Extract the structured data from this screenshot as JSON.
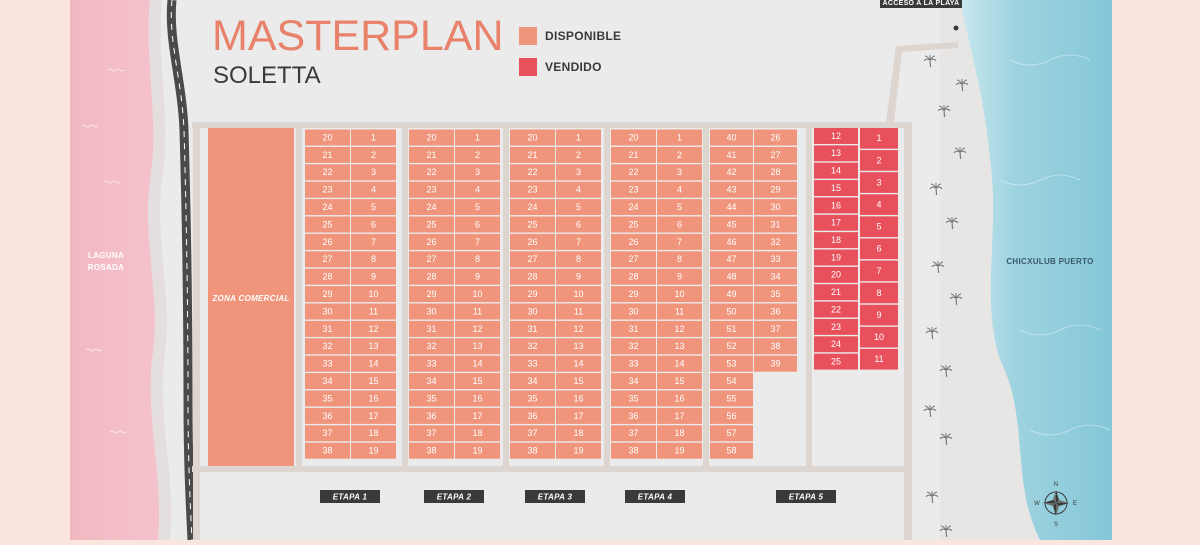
{
  "header": {
    "title": "MASTERPLAN",
    "subtitle": "SOLETTA"
  },
  "legend": {
    "available_label": "DISPONIBLE",
    "sold_label": "VENDIDO",
    "available_color": "#f0957c",
    "sold_color": "#e8505b"
  },
  "places": {
    "laguna_line1": "LAGUNA",
    "laguna_line2": "ROSADA",
    "sea": "CHICXULUB PUERTO",
    "beach_access": "ACCESO A LA PLAYA",
    "zona_comercial": "ZONA COMERCIAL"
  },
  "compass": {
    "n": "N",
    "s": "S",
    "e": "E",
    "w": "W"
  },
  "icons": {
    "palm": "palm-tree-icon",
    "compass": "compass-rose-icon"
  },
  "etapas": [
    {
      "label": "ETAPA 1",
      "left_column": [
        "20",
        "21",
        "22",
        "23",
        "24",
        "25",
        "26",
        "27",
        "28",
        "29",
        "30",
        "31",
        "32",
        "33",
        "34",
        "35",
        "36",
        "37",
        "38"
      ],
      "right_column": [
        "1",
        "2",
        "3",
        "4",
        "5",
        "6",
        "7",
        "8",
        "9",
        "10",
        "11",
        "12",
        "13",
        "14",
        "15",
        "16",
        "17",
        "18",
        "19"
      ],
      "status": "disponible"
    },
    {
      "label": "ETAPA 2",
      "left_column": [
        "20",
        "21",
        "22",
        "23",
        "24",
        "25",
        "26",
        "27",
        "28",
        "29",
        "30",
        "31",
        "32",
        "33",
        "34",
        "35",
        "36",
        "37",
        "38"
      ],
      "right_column": [
        "1",
        "2",
        "3",
        "4",
        "5",
        "6",
        "7",
        "8",
        "9",
        "10",
        "11",
        "12",
        "13",
        "14",
        "15",
        "16",
        "17",
        "18",
        "19"
      ],
      "status": "disponible"
    },
    {
      "label": "ETAPA 3",
      "left_column": [
        "20",
        "21",
        "22",
        "23",
        "24",
        "25",
        "26",
        "27",
        "28",
        "29",
        "30",
        "31",
        "32",
        "33",
        "34",
        "35",
        "36",
        "37",
        "38"
      ],
      "right_column": [
        "1",
        "2",
        "3",
        "4",
        "5",
        "6",
        "7",
        "8",
        "9",
        "10",
        "11",
        "12",
        "13",
        "14",
        "15",
        "16",
        "17",
        "18",
        "19"
      ],
      "status": "disponible"
    },
    {
      "label": "ETAPA 4",
      "left_column": [
        "20",
        "21",
        "22",
        "23",
        "24",
        "25",
        "26",
        "27",
        "28",
        "29",
        "30",
        "31",
        "32",
        "33",
        "34",
        "35",
        "36",
        "37",
        "38"
      ],
      "right_column": [
        "1",
        "2",
        "3",
        "4",
        "5",
        "6",
        "7",
        "8",
        "9",
        "10",
        "11",
        "12",
        "13",
        "14",
        "15",
        "16",
        "17",
        "18",
        "19"
      ],
      "status": "disponible"
    },
    {
      "label": "ETAPA 5",
      "left_column": [
        "40",
        "41",
        "42",
        "43",
        "44",
        "45",
        "46",
        "47",
        "48",
        "49",
        "50",
        "51",
        "52",
        "53",
        "54",
        "55",
        "56",
        "57",
        "58"
      ],
      "right_column": [
        "26",
        "27",
        "28",
        "29",
        "30",
        "31",
        "32",
        "33",
        "34",
        "35",
        "36",
        "37",
        "38",
        "39"
      ],
      "status": "disponible"
    }
  ],
  "sold_block": {
    "left_column": [
      "12",
      "13",
      "14",
      "15",
      "16",
      "17",
      "18",
      "19",
      "20",
      "21",
      "22",
      "23",
      "24",
      "25"
    ],
    "right_column": [
      "1",
      "2",
      "3",
      "4",
      "5",
      "6",
      "7",
      "8",
      "9",
      "10",
      "11"
    ],
    "status": "vendido"
  }
}
